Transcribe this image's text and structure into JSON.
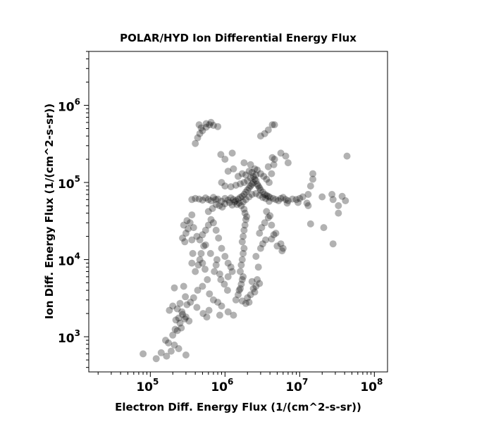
{
  "chart_data": {
    "type": "scatter",
    "title": "POLAR/HYD  Ion Differential Energy Flux",
    "xlabel": "Electron Diff. Energy Flux (1/(cm^2-s-sr))",
    "ylabel": "Ion Diff. Energy Flux (1/(cm^2-s-sr))",
    "xscale": "log",
    "yscale": "log",
    "xlim": [
      15000,
      150000000
    ],
    "ylim": [
      350,
      5000000
    ],
    "xticks": [
      {
        "base": "10",
        "exp": "5"
      },
      {
        "base": "10",
        "exp": "6"
      },
      {
        "base": "10",
        "exp": "7"
      },
      {
        "base": "10",
        "exp": "8"
      }
    ],
    "yticks": [
      {
        "base": "10",
        "exp": "3"
      },
      {
        "base": "10",
        "exp": "4"
      },
      {
        "base": "10",
        "exp": "5"
      },
      {
        "base": "10",
        "exp": "6"
      }
    ],
    "grid": false,
    "marker_color": "#000000",
    "marker_alpha": 0.3,
    "series": [
      {
        "points": [
          [
            80000,
            600
          ],
          [
            120000,
            520
          ],
          [
            140000,
            620
          ],
          [
            165000,
            560
          ],
          [
            190000,
            650
          ],
          [
            210000,
            780
          ],
          [
            240000,
            700
          ],
          [
            300000,
            580
          ],
          [
            160000,
            900
          ],
          [
            175000,
            830
          ],
          [
            200000,
            1050
          ],
          [
            230000,
            1200
          ],
          [
            260000,
            1300
          ],
          [
            215000,
            1250
          ],
          [
            250000,
            1500
          ],
          [
            290000,
            1700
          ],
          [
            330000,
            1600
          ],
          [
            270000,
            1950
          ],
          [
            300000,
            1800
          ],
          [
            240000,
            1750
          ],
          [
            220000,
            1650
          ],
          [
            265000,
            2100
          ],
          [
            180000,
            2200
          ],
          [
            200000,
            2500
          ],
          [
            230000,
            2300
          ],
          [
            250000,
            2700
          ],
          [
            310000,
            2600
          ],
          [
            345000,
            2800
          ],
          [
            420000,
            2400
          ],
          [
            510000,
            2000
          ],
          [
            610000,
            2200
          ],
          [
            570000,
            1800
          ],
          [
            850000,
            1900
          ],
          [
            380000,
            3200
          ],
          [
            295000,
            3300
          ],
          [
            280000,
            4500
          ],
          [
            210000,
            4300
          ],
          [
            430000,
            4000
          ],
          [
            500000,
            4500
          ],
          [
            580000,
            5500
          ],
          [
            620000,
            3600
          ],
          [
            700000,
            3000
          ],
          [
            800000,
            2800
          ],
          [
            900000,
            2500
          ],
          [
            1100000,
            2100
          ],
          [
            1300000,
            1900
          ],
          [
            400000,
            7000
          ],
          [
            440000,
            8500
          ],
          [
            480000,
            12000
          ],
          [
            520000,
            15000
          ],
          [
            460000,
            10000
          ],
          [
            500000,
            9000
          ],
          [
            540000,
            7500
          ],
          [
            360000,
            9000
          ],
          [
            370000,
            12000
          ],
          [
            360000,
            18000
          ],
          [
            290000,
            17000
          ],
          [
            270000,
            19000
          ],
          [
            320000,
            25000
          ],
          [
            280000,
            28000
          ],
          [
            300000,
            22000
          ],
          [
            310000,
            32000
          ],
          [
            340000,
            30000
          ],
          [
            360000,
            38000
          ],
          [
            380000,
            26000
          ],
          [
            420000,
            20000
          ],
          [
            460000,
            18000
          ],
          [
            500000,
            21000
          ],
          [
            550000,
            24000
          ],
          [
            600000,
            28000
          ],
          [
            650000,
            33000
          ],
          [
            700000,
            30000
          ],
          [
            760000,
            24000
          ],
          [
            820000,
            19000
          ],
          [
            900000,
            14000
          ],
          [
            1000000,
            11000
          ],
          [
            1100000,
            9000
          ],
          [
            1200000,
            8000
          ],
          [
            1250000,
            7000
          ],
          [
            1100000,
            6000
          ],
          [
            1400000,
            3000
          ],
          [
            1500000,
            3500
          ],
          [
            1550000,
            4000
          ],
          [
            1600000,
            4200
          ],
          [
            1650000,
            4800
          ],
          [
            1700000,
            5500
          ],
          [
            1750000,
            6000
          ],
          [
            1600000,
            7000
          ],
          [
            1650000,
            8500
          ],
          [
            1700000,
            10000
          ],
          [
            1750000,
            12000
          ],
          [
            1800000,
            14000
          ],
          [
            1700000,
            17000
          ],
          [
            1750000,
            20000
          ],
          [
            1800000,
            24000
          ],
          [
            1850000,
            28000
          ],
          [
            1900000,
            33000
          ],
          [
            1950000,
            36000
          ],
          [
            1850000,
            40000
          ],
          [
            1800000,
            45000
          ],
          [
            2000000,
            3200
          ],
          [
            2200000,
            3500
          ],
          [
            2400000,
            4200
          ],
          [
            2500000,
            3800
          ],
          [
            2600000,
            4500
          ],
          [
            2300000,
            5200
          ],
          [
            2100000,
            2800
          ],
          [
            1900000,
            2700
          ],
          [
            1700000,
            2900
          ],
          [
            2700000,
            5500
          ],
          [
            2900000,
            4900
          ],
          [
            2800000,
            8000
          ],
          [
            2600000,
            11000
          ],
          [
            3000000,
            14000
          ],
          [
            3200000,
            16000
          ],
          [
            3500000,
            18000
          ],
          [
            2900000,
            22000
          ],
          [
            3100000,
            26000
          ],
          [
            3400000,
            30000
          ],
          [
            3800000,
            35000
          ],
          [
            4200000,
            28000
          ],
          [
            4500000,
            21000
          ],
          [
            5000000,
            15000
          ],
          [
            5800000,
            13000
          ],
          [
            4200000,
            18500
          ],
          [
            360000,
            60000
          ],
          [
            400000,
            62000
          ],
          [
            450000,
            61000
          ],
          [
            500000,
            59000
          ],
          [
            550000,
            63000
          ],
          [
            600000,
            60000
          ],
          [
            650000,
            58000
          ],
          [
            700000,
            64000
          ],
          [
            750000,
            60000
          ],
          [
            800000,
            61000
          ],
          [
            900000,
            57000
          ],
          [
            1000000,
            62000
          ],
          [
            1100000,
            59000
          ],
          [
            1200000,
            63000
          ],
          [
            1300000,
            60000
          ],
          [
            1400000,
            58000
          ],
          [
            1500000,
            61000
          ],
          [
            1600000,
            64000
          ],
          [
            1700000,
            66000
          ],
          [
            1800000,
            70000
          ],
          [
            1900000,
            75000
          ],
          [
            2000000,
            80000
          ],
          [
            2100000,
            85000
          ],
          [
            2200000,
            90000
          ],
          [
            2300000,
            95000
          ],
          [
            2400000,
            100000
          ],
          [
            2500000,
            110000
          ],
          [
            2600000,
            105000
          ],
          [
            2700000,
            95000
          ],
          [
            2800000,
            90000
          ],
          [
            2900000,
            85000
          ],
          [
            3000000,
            80000
          ],
          [
            3200000,
            75000
          ],
          [
            3400000,
            70000
          ],
          [
            3600000,
            68000
          ],
          [
            3800000,
            66000
          ],
          [
            4000000,
            64000
          ],
          [
            4400000,
            62000
          ],
          [
            4800000,
            60000
          ],
          [
            5200000,
            58000
          ],
          [
            5600000,
            62000
          ],
          [
            6000000,
            64000
          ],
          [
            6500000,
            60000
          ],
          [
            7000000,
            58000
          ],
          [
            8000000,
            61000
          ],
          [
            9000000,
            60000
          ],
          [
            10000000,
            62000
          ],
          [
            1500000,
            120000
          ],
          [
            1700000,
            130000
          ],
          [
            1900000,
            125000
          ],
          [
            2100000,
            140000
          ],
          [
            2300000,
            135000
          ],
          [
            2500000,
            150000
          ],
          [
            2700000,
            145000
          ],
          [
            3000000,
            130000
          ],
          [
            3300000,
            120000
          ],
          [
            3600000,
            110000
          ],
          [
            3900000,
            100000
          ],
          [
            4200000,
            130000
          ],
          [
            4500000,
            170000
          ],
          [
            4600000,
            200000
          ],
          [
            4300000,
            210000
          ],
          [
            3800000,
            160000
          ],
          [
            1300000,
            150000
          ],
          [
            1100000,
            140000
          ],
          [
            900000,
            100000
          ],
          [
            1000000,
            90000
          ],
          [
            1200000,
            88000
          ],
          [
            1400000,
            92000
          ],
          [
            1600000,
            96000
          ],
          [
            1800000,
            100000
          ],
          [
            2000000,
            105000
          ],
          [
            2200000,
            115000
          ],
          [
            2400000,
            120000
          ],
          [
            2600000,
            125000
          ],
          [
            1000000,
            200000
          ],
          [
            880000,
            230000
          ],
          [
            1250000,
            240000
          ],
          [
            1800000,
            180000
          ],
          [
            2200000,
            170000
          ],
          [
            5600000,
            240000
          ],
          [
            6500000,
            220000
          ],
          [
            7000000,
            180000
          ],
          [
            3000000,
            400000
          ],
          [
            3400000,
            430000
          ],
          [
            3800000,
            480000
          ],
          [
            4300000,
            560000
          ],
          [
            4600000,
            560000
          ],
          [
            400000,
            320000
          ],
          [
            430000,
            380000
          ],
          [
            460000,
            430000
          ],
          [
            500000,
            470000
          ],
          [
            560000,
            520000
          ],
          [
            620000,
            560000
          ],
          [
            700000,
            550000
          ],
          [
            800000,
            530000
          ],
          [
            650000,
            600000
          ],
          [
            560000,
            580000
          ],
          [
            480000,
            510000
          ],
          [
            450000,
            560000
          ],
          [
            13000000,
            70000
          ],
          [
            14000000,
            90000
          ],
          [
            15000000,
            110000
          ],
          [
            15000000,
            130000
          ],
          [
            13000000,
            50000
          ],
          [
            20000000,
            65000
          ],
          [
            27000000,
            70000
          ],
          [
            28000000,
            60000
          ],
          [
            33000000,
            50000
          ],
          [
            37000000,
            66000
          ],
          [
            41000000,
            58000
          ],
          [
            33000000,
            40000
          ],
          [
            14000000,
            29000
          ],
          [
            21000000,
            26000
          ],
          [
            28000000,
            16000
          ],
          [
            43000000,
            220000
          ],
          [
            9500000,
            55000
          ],
          [
            11000000,
            65000
          ],
          [
            12500000,
            54000
          ],
          [
            6800000,
            54000
          ],
          [
            3600000,
            42000
          ],
          [
            4000000,
            37000
          ],
          [
            4800000,
            22000
          ],
          [
            5600000,
            16000
          ],
          [
            6000000,
            14000
          ],
          [
            720000,
            7000
          ],
          [
            760000,
            8500
          ],
          [
            880000,
            5500
          ],
          [
            980000,
            4800
          ],
          [
            1080000,
            4000
          ],
          [
            850000,
            6500
          ],
          [
            780000,
            10000
          ],
          [
            640000,
            12000
          ],
          [
            550000,
            15500
          ],
          [
            600000,
            42000
          ],
          [
            680000,
            46000
          ],
          [
            760000,
            52000
          ],
          [
            840000,
            50000
          ],
          [
            920000,
            48000
          ],
          [
            1000000,
            53000
          ],
          [
            1150000,
            55000
          ],
          [
            1250000,
            51000
          ],
          [
            1350000,
            56000
          ],
          [
            1450000,
            52000
          ],
          [
            1550000,
            54000
          ],
          [
            1650000,
            50000
          ],
          [
            1750000,
            56000
          ],
          [
            1900000,
            60000
          ],
          [
            2100000,
            65000
          ],
          [
            2300000,
            70000
          ],
          [
            2600000,
            72000
          ],
          [
            2900000,
            68000
          ],
          [
            3200000,
            64000
          ],
          [
            3500000,
            62000
          ],
          [
            3900000,
            57000
          ]
        ]
      }
    ]
  }
}
